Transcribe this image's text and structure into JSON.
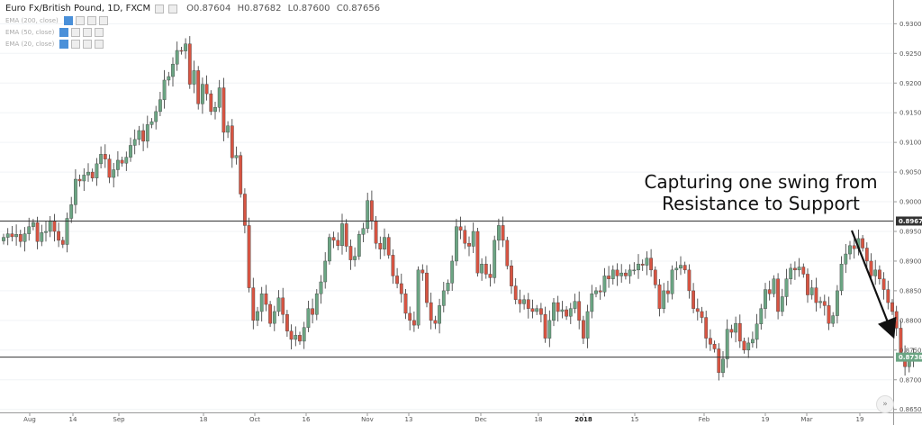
{
  "legend": {
    "symbol": "Euro Fx/British Pound, 1D, FXCM",
    "open": "O0.87604",
    "high": "H0.87682",
    "low": "L0.87600",
    "close": "C0.87656",
    "indicators": [
      {
        "label": "EMA (200, close)"
      },
      {
        "label": "EMA (50, close)"
      },
      {
        "label": "EMA (20, close)"
      }
    ]
  },
  "annotation": {
    "line1": "Capturing one swing from",
    "line2": "Resistance to Support"
  },
  "price_tags": {
    "resistance": "0.89675",
    "current": "0.87381"
  },
  "scroll_button": "»",
  "colors": {
    "up": "#6ba583",
    "down": "#d75442",
    "level_line": "#333333",
    "current_tag": "#6ba583",
    "resistance_tag": "#333333"
  },
  "chart_data": {
    "type": "candlestick",
    "title": "Euro Fx/British Pound, 1D, FXCM",
    "ylim": [
      0.8645,
      0.934
    ],
    "y_ticks": [
      "0.93000",
      "0.92500",
      "0.92000",
      "0.91500",
      "0.91000",
      "0.90500",
      "0.90000",
      "0.89500",
      "0.89000",
      "0.88500",
      "0.88000",
      "0.87500",
      "0.87000",
      "0.86500"
    ],
    "x_ticks": [
      {
        "label": "Aug",
        "bold": false
      },
      {
        "label": "14",
        "bold": false
      },
      {
        "label": "Sep",
        "bold": false
      },
      {
        "label": "18",
        "bold": false
      },
      {
        "label": "Oct",
        "bold": false
      },
      {
        "label": "16",
        "bold": false
      },
      {
        "label": "Nov",
        "bold": false
      },
      {
        "label": "13",
        "bold": false
      },
      {
        "label": "Dec",
        "bold": false
      },
      {
        "label": "18",
        "bold": false
      },
      {
        "label": "2018",
        "bold": true
      },
      {
        "label": "15",
        "bold": false
      },
      {
        "label": "Feb",
        "bold": false
      },
      {
        "label": "19",
        "bold": false
      },
      {
        "label": "Mar",
        "bold": false
      },
      {
        "label": "19",
        "bold": false
      }
    ],
    "levels": [
      {
        "name": "Resistance",
        "value": 0.89675
      },
      {
        "name": "Support",
        "value": 0.87381
      }
    ],
    "closes": [
      0.894,
      0.8946,
      0.8941,
      0.8945,
      0.8933,
      0.8946,
      0.8958,
      0.8965,
      0.8933,
      0.8948,
      0.895,
      0.8968,
      0.895,
      0.8935,
      0.8928,
      0.8972,
      0.8995,
      0.9038,
      0.9035,
      0.9045,
      0.905,
      0.904,
      0.9064,
      0.908,
      0.9072,
      0.9041,
      0.9054,
      0.907,
      0.9065,
      0.9075,
      0.9095,
      0.9105,
      0.912,
      0.9102,
      0.913,
      0.9135,
      0.9152,
      0.9172,
      0.9205,
      0.9211,
      0.9232,
      0.9255,
      0.9254,
      0.9266,
      0.9198,
      0.9221,
      0.9165,
      0.9198,
      0.9182,
      0.9152,
      0.9159,
      0.9192,
      0.9117,
      0.9128,
      0.9074,
      0.9078,
      0.9013,
      0.896,
      0.8855,
      0.88,
      0.8815,
      0.8845,
      0.8827,
      0.8795,
      0.8815,
      0.8838,
      0.881,
      0.8782,
      0.8768,
      0.8775,
      0.8765,
      0.8788,
      0.882,
      0.881,
      0.8845,
      0.8865,
      0.89,
      0.894,
      0.8935,
      0.8926,
      0.8963,
      0.8925,
      0.8902,
      0.8908,
      0.8945,
      0.8955,
      0.9002,
      0.8968,
      0.893,
      0.892,
      0.894,
      0.891,
      0.8875,
      0.8862,
      0.8845,
      0.8812,
      0.88,
      0.8792,
      0.8885,
      0.888,
      0.883,
      0.88,
      0.8795,
      0.8825,
      0.885,
      0.8863,
      0.89,
      0.8958,
      0.8952,
      0.893,
      0.8925,
      0.895,
      0.888,
      0.8895,
      0.8878,
      0.8872,
      0.8935,
      0.896,
      0.8935,
      0.8892,
      0.8858,
      0.8835,
      0.8828,
      0.8835,
      0.882,
      0.8815,
      0.882,
      0.881,
      0.877,
      0.88,
      0.883,
      0.8815,
      0.8818,
      0.8807,
      0.882,
      0.8832,
      0.88,
      0.877,
      0.8815,
      0.8845,
      0.885,
      0.8848,
      0.8875,
      0.887,
      0.8885,
      0.8875,
      0.888,
      0.8875,
      0.8885,
      0.8885,
      0.8895,
      0.8893,
      0.8905,
      0.8885,
      0.886,
      0.882,
      0.885,
      0.8845,
      0.8885,
      0.8888,
      0.8893,
      0.8885,
      0.885,
      0.882,
      0.8815,
      0.8805,
      0.877,
      0.876,
      0.8752,
      0.8712,
      0.8735,
      0.8785,
      0.878,
      0.8795,
      0.8765,
      0.875,
      0.8762,
      0.8768,
      0.8794,
      0.882,
      0.8852,
      0.8845,
      0.887,
      0.8815,
      0.884,
      0.887,
      0.8888,
      0.8885,
      0.889,
      0.8878,
      0.8843,
      0.8855,
      0.883,
      0.8832,
      0.8825,
      0.8795,
      0.8808,
      0.885,
      0.8895,
      0.8912,
      0.8926,
      0.8921,
      0.8938,
      0.8922,
      0.89,
      0.8875,
      0.8885,
      0.887,
      0.8852,
      0.883,
      0.8815,
      0.8787,
      0.8741,
      0.8722,
      0.8738,
      0.8742
    ]
  }
}
